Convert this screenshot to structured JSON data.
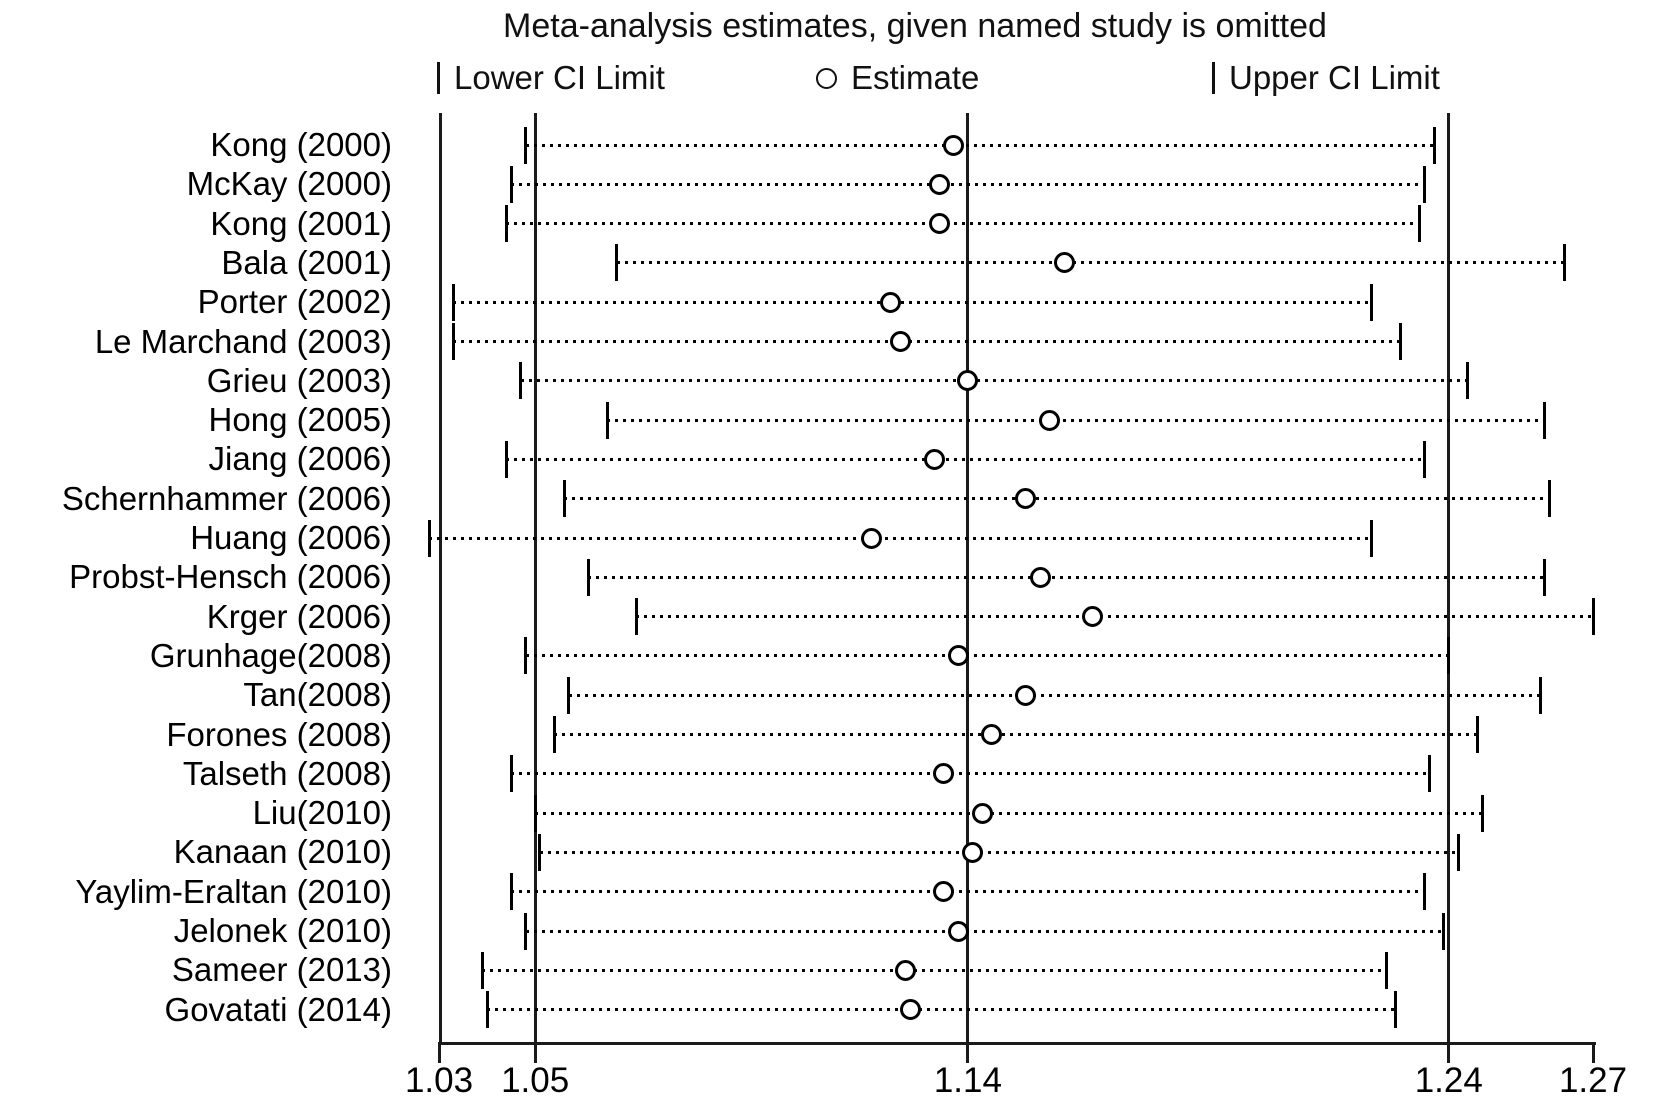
{
  "title": "Meta-analysis estimates, given named study is omitted",
  "legend": {
    "lower": "Lower CI Limit",
    "estimate": "Estimate",
    "upper": "Upper CI Limit"
  },
  "colors": {
    "foreground": "#000000",
    "background": "#ffffff"
  },
  "chart_data": {
    "type": "scatter",
    "subtype": "forest-plot-leave-one-out-sensitivity",
    "title": "Meta-analysis estimates, given named study is omitted",
    "xlabel": "",
    "ylabel": "",
    "xlim": [
      1.03,
      1.27
    ],
    "x_ticks": [
      1.03,
      1.05,
      1.14,
      1.24,
      1.27
    ],
    "x_tick_labels": [
      "1.03",
      "1.05",
      "1.14",
      "1.24",
      "1.27"
    ],
    "reference_lines": [
      1.05,
      1.14,
      1.24
    ],
    "overall": {
      "lower": 1.05,
      "estimate": 1.14,
      "upper": 1.24
    },
    "legend": [
      "Lower CI Limit",
      "Estimate",
      "Upper CI Limit"
    ],
    "grid": false,
    "legend_position": "top",
    "studies": [
      {
        "label": "Kong (2000)",
        "lower": 1.048,
        "estimate": 1.137,
        "upper": 1.237
      },
      {
        "label": "McKay (2000)",
        "lower": 1.045,
        "estimate": 1.134,
        "upper": 1.235
      },
      {
        "label": "Kong (2001)",
        "lower": 1.044,
        "estimate": 1.134,
        "upper": 1.234
      },
      {
        "label": "Bala (2001)",
        "lower": 1.067,
        "estimate": 1.16,
        "upper": 1.264
      },
      {
        "label": "Porter (2002)",
        "lower": 1.033,
        "estimate": 1.124,
        "upper": 1.224
      },
      {
        "label": "Le Marchand (2003)",
        "lower": 1.033,
        "estimate": 1.126,
        "upper": 1.23
      },
      {
        "label": "Grieu (2003)",
        "lower": 1.047,
        "estimate": 1.14,
        "upper": 1.244
      },
      {
        "label": "Hong (2005)",
        "lower": 1.065,
        "estimate": 1.157,
        "upper": 1.26
      },
      {
        "label": "Jiang (2006)",
        "lower": 1.044,
        "estimate": 1.133,
        "upper": 1.235
      },
      {
        "label": "Schernhammer (2006)",
        "lower": 1.056,
        "estimate": 1.152,
        "upper": 1.261
      },
      {
        "label": "Huang (2006)",
        "lower": 1.028,
        "estimate": 1.12,
        "upper": 1.224
      },
      {
        "label": "Probst-Hensch (2006)",
        "lower": 1.061,
        "estimate": 1.155,
        "upper": 1.26
      },
      {
        "label": "Krger (2006)",
        "lower": 1.071,
        "estimate": 1.166,
        "upper": 1.27
      },
      {
        "label": "Grunhage(2008)",
        "lower": 1.048,
        "estimate": 1.138,
        "upper": 1.24
      },
      {
        "label": "Tan(2008)",
        "lower": 1.057,
        "estimate": 1.152,
        "upper": 1.259
      },
      {
        "label": "Forones (2008)",
        "lower": 1.054,
        "estimate": 1.145,
        "upper": 1.246
      },
      {
        "label": "Talseth (2008)",
        "lower": 1.045,
        "estimate": 1.135,
        "upper": 1.236
      },
      {
        "label": "Liu(2010)",
        "lower": 1.05,
        "estimate": 1.143,
        "upper": 1.247
      },
      {
        "label": "Kanaan (2010)",
        "lower": 1.051,
        "estimate": 1.141,
        "upper": 1.242
      },
      {
        "label": "Yaylim-Eraltan (2010)",
        "lower": 1.045,
        "estimate": 1.135,
        "upper": 1.235
      },
      {
        "label": "Jelonek (2010)",
        "lower": 1.048,
        "estimate": 1.138,
        "upper": 1.239
      },
      {
        "label": "Sameer (2013)",
        "lower": 1.039,
        "estimate": 1.127,
        "upper": 1.227
      },
      {
        "label": "Govatati (2014)",
        "lower": 1.04,
        "estimate": 1.128,
        "upper": 1.229
      }
    ]
  }
}
